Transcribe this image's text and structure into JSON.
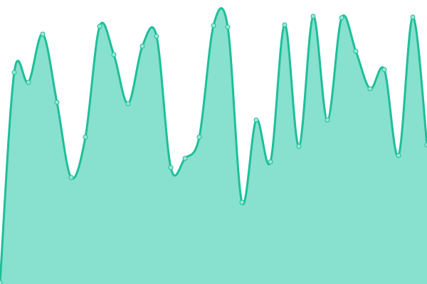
{
  "chart_data": {
    "type": "area",
    "title": "",
    "xlabel": "",
    "ylabel": "",
    "x": [
      0,
      1,
      2,
      3,
      4,
      5,
      6,
      7,
      8,
      9,
      10,
      11,
      12,
      13,
      14,
      15,
      16,
      17,
      18,
      19,
      20,
      21,
      22,
      23,
      24,
      25,
      26,
      27,
      28,
      29,
      30
    ],
    "series": [
      {
        "values": [
          2,
          298,
          284,
          352,
          256,
          150,
          207,
          363,
          323,
          254,
          335,
          349,
          164,
          177,
          207,
          364,
          362,
          115,
          231,
          172,
          365,
          194,
          377,
          231,
          375,
          328,
          275,
          302,
          181,
          376,
          196
        ]
      }
    ],
    "ylim": [
      0,
      400
    ],
    "grid": false,
    "axes_visible": false,
    "legend": "none",
    "colors": {
      "fill": "#88e0cf",
      "stroke": "#1dbf99",
      "point_fill": "#9ae6d6"
    }
  }
}
